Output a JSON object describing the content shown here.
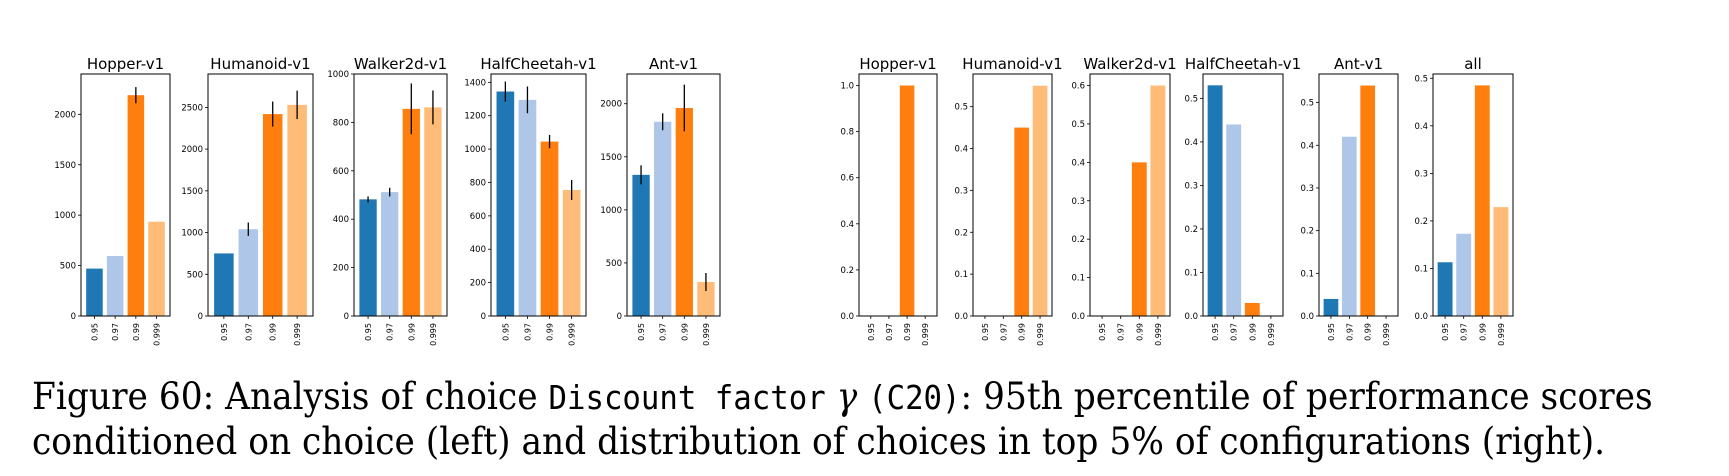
{
  "colors": [
    "#1f77b4",
    "#aec7e8",
    "#ff7f0e",
    "#ffbb78"
  ],
  "caption": {
    "figure_label": "Figure 60:",
    "text_a": "Analysis of choice",
    "code": "Discount factor",
    "gamma": "γ",
    "code_b": "(C20)",
    "text_b": ": 95th percentile of performance scores",
    "line2": "conditioned on choice (left) and distribution of choices in top 5% of configurations (right)."
  },
  "chart_data": [
    {
      "type": "bar",
      "group": "left",
      "title": "Hopper-v1",
      "categories": [
        "0.95",
        "0.97",
        "0.99",
        "0.999"
      ],
      "values": [
        470,
        595,
        2190,
        935
      ],
      "errors": [
        0,
        0,
        80,
        0
      ],
      "ylim": [
        0,
        2400
      ],
      "yticks": [
        "0",
        "500",
        "1000",
        "1500",
        "2000"
      ]
    },
    {
      "type": "bar",
      "group": "left",
      "title": "Humanoid-v1",
      "categories": [
        "0.95",
        "0.97",
        "0.99",
        "0.999"
      ],
      "values": [
        750,
        1040,
        2420,
        2530
      ],
      "errors": [
        0,
        80,
        150,
        170
      ],
      "ylim": [
        0,
        2900
      ],
      "yticks": [
        "0",
        "500",
        "1000",
        "1500",
        "2000",
        "2500"
      ]
    },
    {
      "type": "bar",
      "group": "left",
      "title": "Walker2d-v1",
      "categories": [
        "0.95",
        "0.97",
        "0.99",
        "0.999"
      ],
      "values": [
        482,
        512,
        856,
        862
      ],
      "errors": [
        12,
        18,
        105,
        70
      ],
      "ylim": [
        0,
        1000
      ],
      "yticks": [
        "0",
        "200",
        "400",
        "600",
        "800",
        "1000"
      ]
    },
    {
      "type": "bar",
      "group": "left",
      "title": "HalfCheetah-v1",
      "categories": [
        "0.95",
        "0.97",
        "0.99",
        "0.999"
      ],
      "values": [
        1345,
        1295,
        1045,
        755
      ],
      "errors": [
        60,
        80,
        40,
        60
      ],
      "ylim": [
        0,
        1450
      ],
      "yticks": [
        "0",
        "200",
        "400",
        "600",
        "800",
        "1000",
        "1200",
        "1400"
      ]
    },
    {
      "type": "bar",
      "group": "left",
      "title": "Ant-v1",
      "categories": [
        "0.95",
        "0.97",
        "0.99",
        "0.999"
      ],
      "values": [
        1330,
        1830,
        1960,
        320
      ],
      "errors": [
        90,
        80,
        220,
        85
      ],
      "ylim": [
        0,
        2280
      ],
      "yticks": [
        "0",
        "500",
        "1000",
        "1500",
        "2000"
      ]
    },
    {
      "type": "bar",
      "group": "right",
      "title": "Hopper-v1",
      "categories": [
        "0.95",
        "0.97",
        "0.99",
        "0.999"
      ],
      "values": [
        0,
        0,
        1.0,
        0
      ],
      "ylim": [
        0,
        1.05
      ],
      "yticks": [
        "0.0",
        "0.2",
        "0.4",
        "0.6",
        "0.8",
        "1.0"
      ]
    },
    {
      "type": "bar",
      "group": "right",
      "title": "Humanoid-v1",
      "categories": [
        "0.95",
        "0.97",
        "0.99",
        "0.999"
      ],
      "values": [
        0,
        0,
        0.45,
        0.55
      ],
      "ylim": [
        0,
        0.578
      ],
      "yticks": [
        "0.0",
        "0.1",
        "0.2",
        "0.3",
        "0.4",
        "0.5"
      ]
    },
    {
      "type": "bar",
      "group": "right",
      "title": "Walker2d-v1",
      "categories": [
        "0.95",
        "0.97",
        "0.99",
        "0.999"
      ],
      "values": [
        0,
        0,
        0.4,
        0.6
      ],
      "ylim": [
        0,
        0.63
      ],
      "yticks": [
        "0.0",
        "0.1",
        "0.2",
        "0.3",
        "0.4",
        "0.5",
        "0.6"
      ]
    },
    {
      "type": "bar",
      "group": "right",
      "title": "HalfCheetah-v1",
      "categories": [
        "0.95",
        "0.97",
        "0.99",
        "0.999"
      ],
      "values": [
        0.53,
        0.44,
        0.03,
        0
      ],
      "ylim": [
        0,
        0.556
      ],
      "yticks": [
        "0.0",
        "0.1",
        "0.2",
        "0.3",
        "0.4",
        "0.5"
      ]
    },
    {
      "type": "bar",
      "group": "right",
      "title": "Ant-v1",
      "categories": [
        "0.95",
        "0.97",
        "0.99",
        "0.999"
      ],
      "values": [
        0.04,
        0.42,
        0.54,
        0
      ],
      "ylim": [
        0,
        0.567
      ],
      "yticks": [
        "0.0",
        "0.1",
        "0.2",
        "0.3",
        "0.4",
        "0.5"
      ]
    },
    {
      "type": "bar",
      "group": "right",
      "title": "all",
      "categories": [
        "0.95",
        "0.97",
        "0.99",
        "0.999"
      ],
      "values": [
        0.113,
        0.173,
        0.485,
        0.229
      ],
      "ylim": [
        0,
        0.509
      ],
      "yticks": [
        "0.0",
        "0.1",
        "0.2",
        "0.3",
        "0.4",
        "0.5"
      ]
    }
  ]
}
